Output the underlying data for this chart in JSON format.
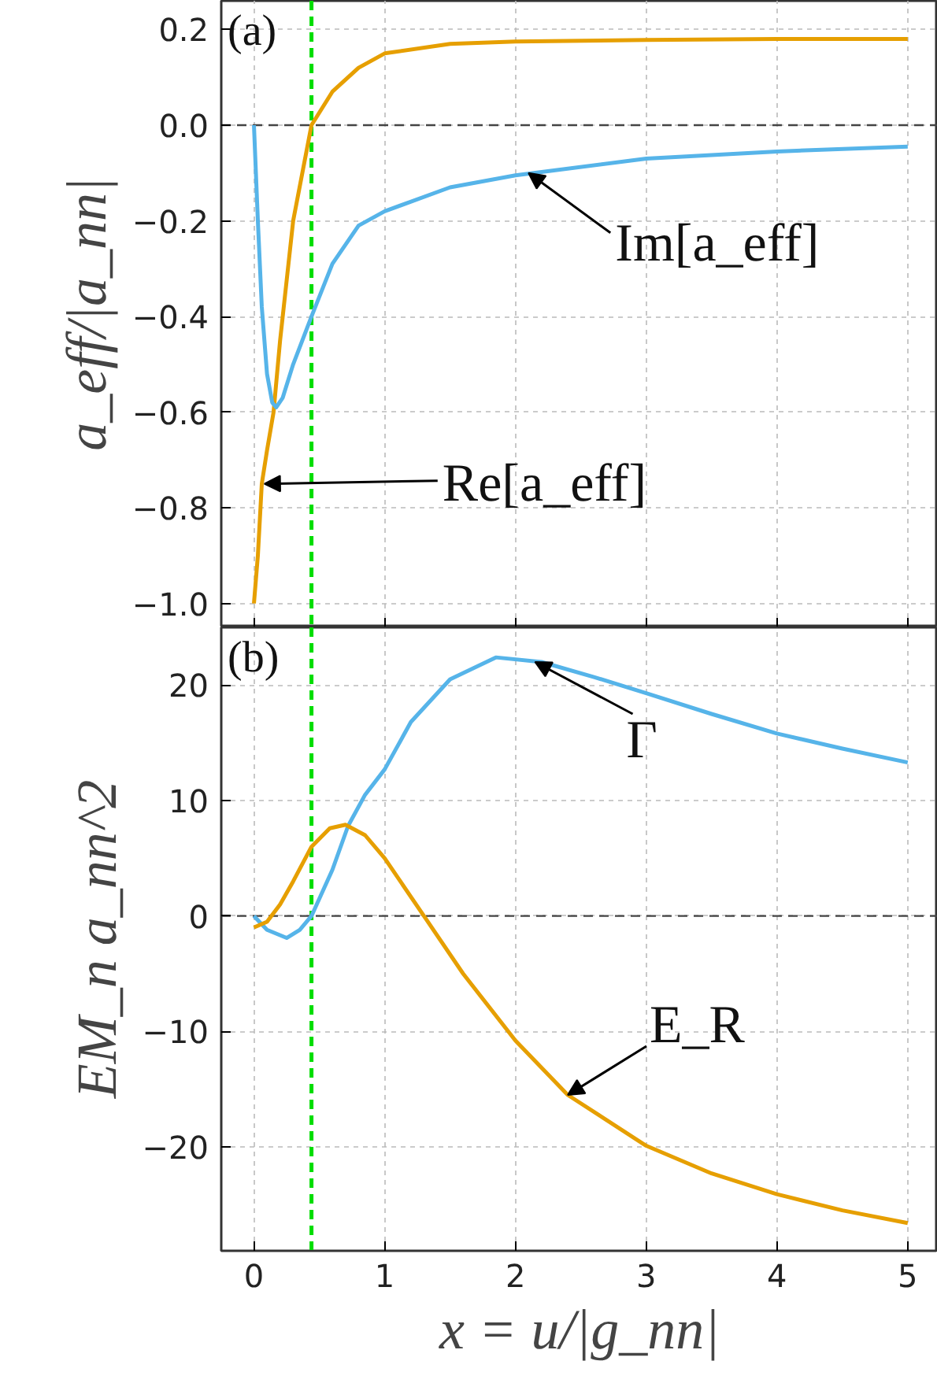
{
  "chart_data": [
    {
      "type": "line",
      "ylabel": "a_eff/|a_nn|",
      "xlim": [
        -0.25,
        5.23
      ],
      "ylim": [
        -1.05,
        0.26
      ],
      "xticks": [
        0,
        1,
        2,
        3,
        4,
        5
      ],
      "yticks": [
        {
          "value": 0.2,
          "label": "0.2"
        },
        {
          "value": 0.0,
          "label": "0.0"
        },
        {
          "value": -0.2,
          "label": "−0.2"
        },
        {
          "value": -0.4,
          "label": "−0.4"
        },
        {
          "value": -0.6,
          "label": "−0.6"
        },
        {
          "value": -0.8,
          "label": "−0.8"
        },
        {
          "value": -1.0,
          "label": "−1.0"
        }
      ],
      "tick_labels": "y",
      "grid": true,
      "series": [
        {
          "color": "#e69f00",
          "x": [
            0,
            0.03,
            0.06,
            0.1,
            0.15,
            0.2,
            0.3,
            0.44,
            0.6,
            0.8,
            1.0,
            1.5,
            2,
            3,
            4,
            5
          ],
          "values": [
            -1.0,
            -0.9,
            -0.75,
            -0.68,
            -0.6,
            -0.45,
            -0.2,
            0.0,
            0.07,
            0.12,
            0.15,
            0.17,
            0.175,
            0.178,
            0.18,
            0.18
          ]
        },
        {
          "color": "#56b4e9",
          "x": [
            0,
            0.03,
            0.06,
            0.1,
            0.14,
            0.17,
            0.22,
            0.3,
            0.44,
            0.6,
            0.8,
            1.0,
            1.5,
            2,
            3,
            4,
            5
          ],
          "values": [
            0.0,
            -0.2,
            -0.38,
            -0.52,
            -0.58,
            -0.59,
            -0.57,
            -0.5,
            -0.4,
            -0.29,
            -0.21,
            -0.18,
            -0.13,
            -0.105,
            -0.07,
            -0.055,
            -0.045
          ]
        }
      ],
      "ref_lines": [
        {
          "axis": "y",
          "value": 0,
          "color": "#444444",
          "line_style": "dashed"
        },
        {
          "axis": "x",
          "value": 0.44,
          "color": "#00dd00",
          "line_style": "dashed"
        }
      ],
      "annotations": [
        "(a)",
        {
          "text": "Re[a_eff]",
          "x": 0.08,
          "y": -0.75
        },
        {
          "text": "Im[a_eff]",
          "x": 2.1,
          "y": -0.1
        }
      ]
    },
    {
      "type": "line",
      "xlabel": "x = u/|g_nn|",
      "ylabel": "EM_n a_nn^2",
      "xlim": [
        -0.25,
        5.23
      ],
      "ylim": [
        -29,
        25
      ],
      "xticks": [
        0,
        1,
        2,
        3,
        4,
        5
      ],
      "yticks": [
        {
          "value": 20,
          "label": "20"
        },
        {
          "value": 10,
          "label": "10"
        },
        {
          "value": 0,
          "label": "0"
        },
        {
          "value": -10,
          "label": "−10"
        },
        {
          "value": -20,
          "label": "−20"
        }
      ],
      "grid": true,
      "series": [
        {
          "color": "#56b4e9",
          "x": [
            0,
            0.1,
            0.25,
            0.35,
            0.44,
            0.6,
            0.72,
            0.85,
            1.0,
            1.2,
            1.5,
            1.85,
            2.2,
            2.6,
            3,
            3.5,
            4,
            4.5,
            5
          ],
          "values": [
            0,
            -1.2,
            -1.9,
            -1.2,
            0,
            4,
            7.8,
            10.5,
            12.7,
            16.8,
            20.5,
            22.4,
            22,
            20.7,
            19.3,
            17.5,
            15.8,
            14.5,
            13.3
          ]
        },
        {
          "color": "#e69f00",
          "x": [
            0,
            0.1,
            0.2,
            0.3,
            0.44,
            0.58,
            0.7,
            0.85,
            1.0,
            1.3,
            1.6,
            2.0,
            2.4,
            3,
            3.5,
            4,
            4.5,
            5
          ],
          "values": [
            -1,
            -0.5,
            1,
            3,
            6,
            7.6,
            7.9,
            7,
            5,
            0,
            -5,
            -10.8,
            -15.5,
            -19.9,
            -22.3,
            -24.1,
            -25.5,
            -26.6
          ]
        }
      ],
      "ref_lines": [
        {
          "axis": "y",
          "value": 0,
          "color": "#444444",
          "line_style": "dashed"
        },
        {
          "axis": "x",
          "value": 0.44,
          "color": "#00dd00",
          "line_style": "dashed"
        }
      ],
      "annotations": [
        "(b)",
        {
          "text": "Γ",
          "x": 2.15,
          "y": 22
        },
        {
          "text": "E_R",
          "x": 2.4,
          "y": -15.5
        }
      ]
    }
  ]
}
